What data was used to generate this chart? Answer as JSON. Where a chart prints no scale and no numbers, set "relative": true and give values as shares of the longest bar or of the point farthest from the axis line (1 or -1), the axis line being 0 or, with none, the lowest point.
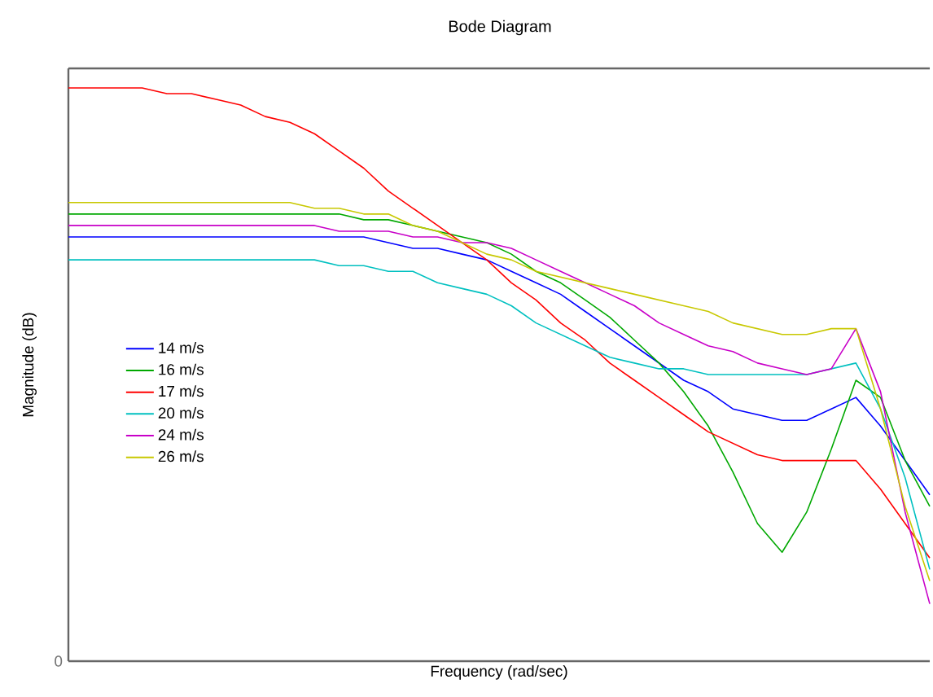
{
  "chart_data": {
    "type": "line",
    "title": "Bode Diagram",
    "xlabel": "Frequency  (rad/sec)",
    "ylabel": "Magnitude (dB)",
    "relative": true,
    "annotations": [
      "0"
    ],
    "legend": "left",
    "marker": "none",
    "line_style": "solid",
    "categories": [
      null,
      null,
      null,
      null,
      null,
      null,
      null,
      null,
      null,
      null,
      null,
      null,
      null,
      null,
      null,
      null,
      null,
      null,
      null,
      null,
      null,
      null,
      null,
      null,
      null,
      null,
      null,
      null,
      null,
      null,
      null,
      null,
      null,
      null,
      null,
      null
    ],
    "series": [
      {
        "name": "14 m/s",
        "color": "#0000ff",
        "values": [
          0.74,
          0.74,
          0.74,
          0.74,
          0.74,
          0.74,
          0.74,
          0.74,
          0.74,
          0.74,
          0.74,
          0.74,
          0.74,
          0.73,
          0.72,
          0.72,
          0.71,
          0.7,
          0.68,
          0.66,
          0.64,
          0.61,
          0.58,
          0.55,
          0.52,
          0.49,
          0.47,
          0.44,
          0.43,
          0.42,
          0.42,
          0.44,
          0.46,
          0.41,
          0.35,
          0.29
        ]
      },
      {
        "name": "16 m/s",
        "color": "#00a800",
        "values": [
          0.78,
          0.78,
          0.78,
          0.78,
          0.78,
          0.78,
          0.78,
          0.78,
          0.78,
          0.78,
          0.78,
          0.78,
          0.77,
          0.77,
          0.76,
          0.75,
          0.74,
          0.73,
          0.71,
          0.68,
          0.66,
          0.63,
          0.6,
          0.56,
          0.52,
          0.47,
          0.41,
          0.33,
          0.24,
          0.19,
          0.26,
          0.37,
          0.49,
          0.46,
          0.35,
          0.27
        ]
      },
      {
        "name": "17 m/s",
        "color": "#ff0000",
        "values": [
          1.0,
          1.0,
          1.0,
          1.0,
          0.99,
          0.99,
          0.98,
          0.97,
          0.95,
          0.94,
          0.92,
          0.89,
          0.86,
          0.82,
          0.79,
          0.76,
          0.73,
          0.7,
          0.66,
          0.63,
          0.59,
          0.56,
          0.52,
          0.49,
          0.46,
          0.43,
          0.4,
          0.38,
          0.36,
          0.35,
          0.35,
          0.35,
          0.35,
          0.3,
          0.24,
          0.18
        ]
      },
      {
        "name": "20 m/s",
        "color": "#00c0c0",
        "values": [
          0.7,
          0.7,
          0.7,
          0.7,
          0.7,
          0.7,
          0.7,
          0.7,
          0.7,
          0.7,
          0.7,
          0.69,
          0.69,
          0.68,
          0.68,
          0.66,
          0.65,
          0.64,
          0.62,
          0.59,
          0.57,
          0.55,
          0.53,
          0.52,
          0.51,
          0.51,
          0.5,
          0.5,
          0.5,
          0.5,
          0.5,
          0.51,
          0.52,
          0.44,
          0.32,
          0.16
        ]
      },
      {
        "name": "24 m/s",
        "color": "#c800c8",
        "values": [
          0.76,
          0.76,
          0.76,
          0.76,
          0.76,
          0.76,
          0.76,
          0.76,
          0.76,
          0.76,
          0.76,
          0.75,
          0.75,
          0.75,
          0.74,
          0.74,
          0.73,
          0.73,
          0.72,
          0.7,
          0.68,
          0.66,
          0.64,
          0.62,
          0.59,
          0.57,
          0.55,
          0.54,
          0.52,
          0.51,
          0.5,
          0.51,
          0.58,
          0.47,
          0.26,
          0.1
        ]
      },
      {
        "name": "26 m/s",
        "color": "#c8c800",
        "values": [
          0.8,
          0.8,
          0.8,
          0.8,
          0.8,
          0.8,
          0.8,
          0.8,
          0.8,
          0.8,
          0.79,
          0.79,
          0.78,
          0.78,
          0.76,
          0.75,
          0.73,
          0.71,
          0.7,
          0.68,
          0.67,
          0.66,
          0.65,
          0.64,
          0.63,
          0.62,
          0.61,
          0.59,
          0.58,
          0.57,
          0.57,
          0.58,
          0.58,
          0.44,
          0.27,
          0.14
        ]
      }
    ]
  }
}
